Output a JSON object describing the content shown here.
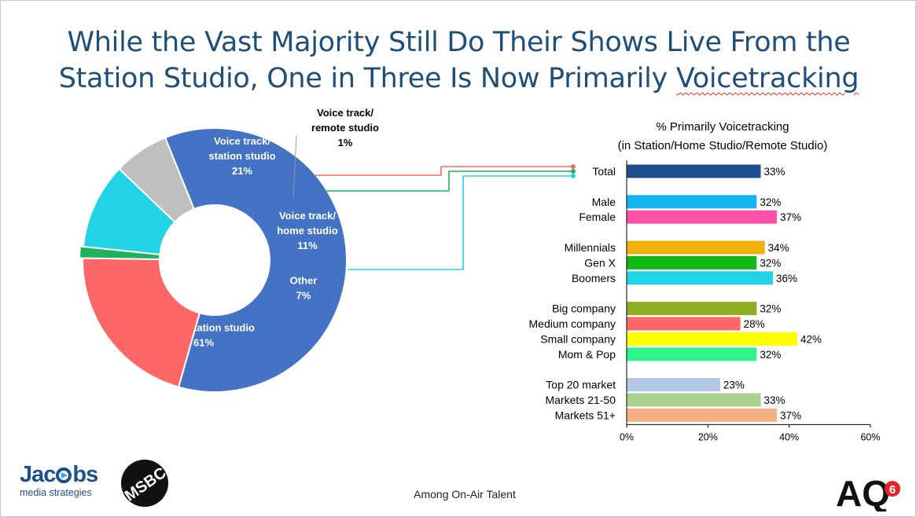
{
  "title": {
    "line1": "While the Vast Majority Still Do Their Shows Live From the",
    "line2_a": "Station Studio, One in Three Is Now Primarily ",
    "line2_b": "Voicetracking"
  },
  "footer_note": "Among On-Air Talent",
  "logos": {
    "jacobs_main_1": "Jac",
    "jacobs_main_2": "bs",
    "jacobs_sub": "media strategies",
    "msbc_text": "MSBC",
    "aq_text": "AQ",
    "aq_badge": "6"
  },
  "chart_data": [
    {
      "type": "pie",
      "donut": true,
      "slices": [
        {
          "label_lines": [
            "Live in station studio"
          ],
          "pct_label": "61%",
          "value": 61,
          "color": "#4472c4",
          "label_color": "#ffffff"
        },
        {
          "label_lines": [
            "Voice track/",
            "station studio"
          ],
          "pct_label": "21%",
          "value": 21,
          "color": "#ff6666",
          "label_color": "#ffffff"
        },
        {
          "label_lines": [
            "Voice track/",
            "remote studio"
          ],
          "pct_label": "1%",
          "value": 1.4,
          "color": "#1fb25a",
          "label_color": "#000000"
        },
        {
          "label_lines": [
            "Voice track/",
            "home studio"
          ],
          "pct_label": "11%",
          "value": 10.6,
          "color": "#22d3e8",
          "label_color": "#ffffff"
        },
        {
          "label_lines": [
            "Other"
          ],
          "pct_label": "7%",
          "value": 6.8,
          "color": "#bfbfbf",
          "label_color": "#ffffff"
        }
      ]
    },
    {
      "type": "bar",
      "orientation": "horizontal",
      "title_line1": "% Primarily Voicetracking",
      "title_line2": "(in Station/Home Studio/Remote Studio)",
      "xlim": [
        0,
        60
      ],
      "xticks": [
        "0%",
        "20%",
        "40%",
        "60%"
      ],
      "groups": [
        [
          {
            "label": "Total",
            "value": 33,
            "value_label": "33%",
            "color": "#1f4e8c"
          }
        ],
        [
          {
            "label": "Male",
            "value": 32,
            "value_label": "32%",
            "color": "#14b4f0"
          },
          {
            "label": "Female",
            "value": 37,
            "value_label": "37%",
            "color": "#ff4fa7"
          }
        ],
        [
          {
            "label": "Millennials",
            "value": 34,
            "value_label": "34%",
            "color": "#f2b00b"
          },
          {
            "label": "Gen X",
            "value": 32,
            "value_label": "32%",
            "color": "#12b812"
          },
          {
            "label": "Boomers",
            "value": 36,
            "value_label": "36%",
            "color": "#22d3e8"
          }
        ],
        [
          {
            "label": "Big company",
            "value": 32,
            "value_label": "32%",
            "color": "#8fae22"
          },
          {
            "label": "Medium company",
            "value": 28,
            "value_label": "28%",
            "color": "#ff6666"
          },
          {
            "label": "Small company",
            "value": 42,
            "value_label": "42%",
            "color": "#ffff00"
          },
          {
            "label": "Mom & Pop",
            "value": 32,
            "value_label": "32%",
            "color": "#2ef58b"
          }
        ],
        [
          {
            "label": "Top 20 market",
            "value": 23,
            "value_label": "23%",
            "color": "#b4c7e7"
          },
          {
            "label": "Markets 21-50",
            "value": 33,
            "value_label": "33%",
            "color": "#a9d18e"
          },
          {
            "label": "Markets 51+",
            "value": 37,
            "value_label": "37%",
            "color": "#f4b183"
          }
        ]
      ]
    }
  ]
}
